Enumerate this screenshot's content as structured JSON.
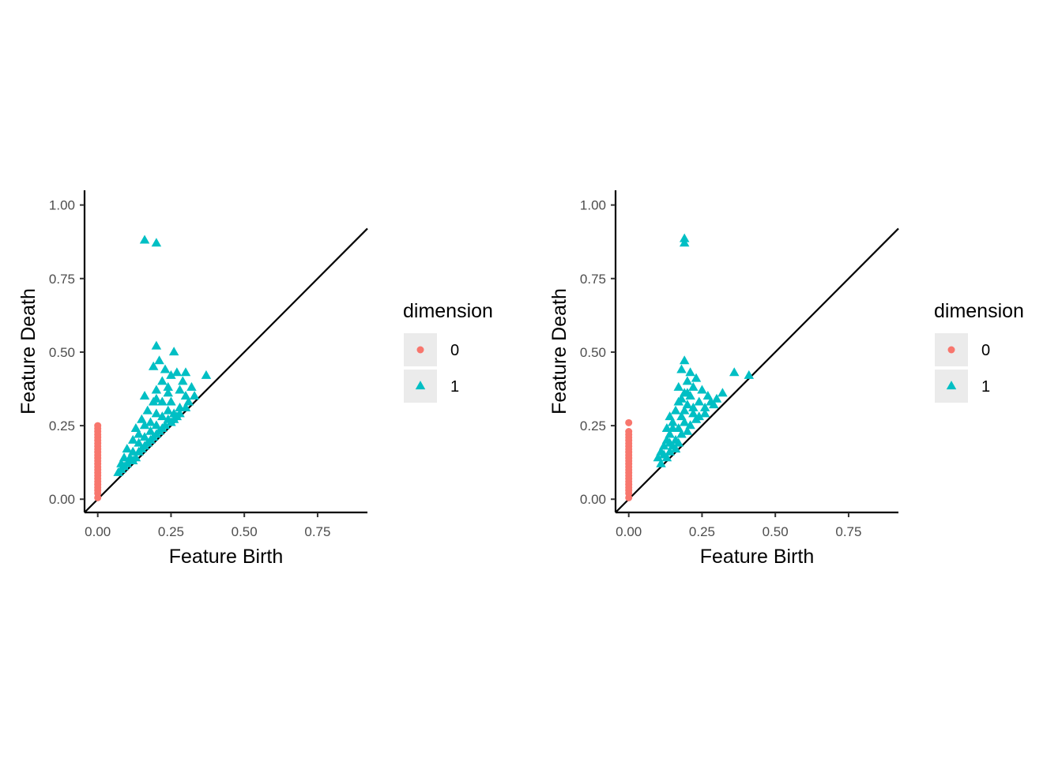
{
  "chart_data": [
    {
      "type": "scatter",
      "title": "",
      "xlabel": "Feature Birth",
      "ylabel": "Feature Death",
      "xlim": [
        -0.045,
        0.92
      ],
      "ylim": [
        -0.045,
        1.05
      ],
      "xticks": [
        "0.00",
        "0.25",
        "0.50",
        "0.75"
      ],
      "xtick_values": [
        0,
        0.25,
        0.5,
        0.75
      ],
      "yticks": [
        "0.00",
        "0.25",
        "0.50",
        "0.75",
        "1.00"
      ],
      "ytick_values": [
        0,
        0.25,
        0.5,
        0.75,
        1.0
      ],
      "diagonal": true,
      "grid": false,
      "legend": {
        "title": "dimension",
        "position": "right",
        "entries": [
          {
            "label": "0",
            "shape": "circle",
            "color": "#F8766D"
          },
          {
            "label": "1",
            "shape": "triangle",
            "color": "#00BFC4"
          }
        ]
      },
      "series": [
        {
          "name": "0",
          "shape": "circle",
          "color": "#F8766D",
          "points": [
            [
              0,
              0.005
            ],
            [
              0,
              0.02
            ],
            [
              0,
              0.03
            ],
            [
              0,
              0.04
            ],
            [
              0,
              0.05
            ],
            [
              0,
              0.06
            ],
            [
              0,
              0.07
            ],
            [
              0,
              0.08
            ],
            [
              0,
              0.09
            ],
            [
              0,
              0.1
            ],
            [
              0,
              0.11
            ],
            [
              0,
              0.12
            ],
            [
              0,
              0.13
            ],
            [
              0,
              0.14
            ],
            [
              0,
              0.15
            ],
            [
              0,
              0.16
            ],
            [
              0,
              0.17
            ],
            [
              0,
              0.18
            ],
            [
              0,
              0.19
            ],
            [
              0,
              0.2
            ],
            [
              0,
              0.21
            ],
            [
              0,
              0.22
            ],
            [
              0,
              0.23
            ],
            [
              0,
              0.24
            ],
            [
              0,
              0.25
            ]
          ]
        },
        {
          "name": "1",
          "shape": "triangle",
          "color": "#00BFC4",
          "points": [
            [
              0.16,
              0.88
            ],
            [
              0.2,
              0.87
            ],
            [
              0.2,
              0.52
            ],
            [
              0.26,
              0.5
            ],
            [
              0.21,
              0.47
            ],
            [
              0.16,
              0.35
            ],
            [
              0.3,
              0.43
            ],
            [
              0.27,
              0.43
            ],
            [
              0.37,
              0.42
            ],
            [
              0.25,
              0.42
            ],
            [
              0.29,
              0.4
            ],
            [
              0.22,
              0.4
            ],
            [
              0.32,
              0.38
            ],
            [
              0.24,
              0.38
            ],
            [
              0.2,
              0.37
            ],
            [
              0.28,
              0.37
            ],
            [
              0.33,
              0.35
            ],
            [
              0.3,
              0.35
            ],
            [
              0.19,
              0.33
            ],
            [
              0.25,
              0.33
            ],
            [
              0.22,
              0.33
            ],
            [
              0.31,
              0.33
            ],
            [
              0.17,
              0.3
            ],
            [
              0.24,
              0.3
            ],
            [
              0.28,
              0.31
            ],
            [
              0.2,
              0.29
            ],
            [
              0.26,
              0.29
            ],
            [
              0.3,
              0.31
            ],
            [
              0.15,
              0.27
            ],
            [
              0.22,
              0.28
            ],
            [
              0.18,
              0.26
            ],
            [
              0.24,
              0.27
            ],
            [
              0.28,
              0.29
            ],
            [
              0.13,
              0.24
            ],
            [
              0.16,
              0.25
            ],
            [
              0.2,
              0.25
            ],
            [
              0.26,
              0.27
            ],
            [
              0.14,
              0.22
            ],
            [
              0.18,
              0.23
            ],
            [
              0.22,
              0.24
            ],
            [
              0.12,
              0.2
            ],
            [
              0.16,
              0.21
            ],
            [
              0.2,
              0.22
            ],
            [
              0.1,
              0.17
            ],
            [
              0.14,
              0.19
            ],
            [
              0.18,
              0.2
            ],
            [
              0.09,
              0.14
            ],
            [
              0.12,
              0.16
            ],
            [
              0.16,
              0.18
            ],
            [
              0.08,
              0.12
            ],
            [
              0.11,
              0.14
            ],
            [
              0.14,
              0.16
            ],
            [
              0.07,
              0.09
            ],
            [
              0.1,
              0.12
            ],
            [
              0.13,
              0.14
            ],
            [
              0.08,
              0.1
            ],
            [
              0.12,
              0.13
            ],
            [
              0.15,
              0.17
            ],
            [
              0.17,
              0.19
            ],
            [
              0.21,
              0.23
            ],
            [
              0.23,
              0.25
            ],
            [
              0.25,
              0.26
            ],
            [
              0.27,
              0.28
            ],
            [
              0.19,
              0.21
            ],
            [
              0.11,
              0.13
            ],
            [
              0.09,
              0.11
            ],
            [
              0.2,
              0.34
            ],
            [
              0.19,
              0.45
            ],
            [
              0.23,
              0.44
            ],
            [
              0.24,
              0.36
            ]
          ]
        }
      ]
    },
    {
      "type": "scatter",
      "title": "",
      "xlabel": "Feature Birth",
      "ylabel": "Feature Death",
      "xlim": [
        -0.045,
        0.92
      ],
      "ylim": [
        -0.045,
        1.05
      ],
      "xticks": [
        "0.00",
        "0.25",
        "0.50",
        "0.75"
      ],
      "xtick_values": [
        0,
        0.25,
        0.5,
        0.75
      ],
      "yticks": [
        "0.00",
        "0.25",
        "0.50",
        "0.75",
        "1.00"
      ],
      "ytick_values": [
        0,
        0.25,
        0.5,
        0.75,
        1.0
      ],
      "diagonal": true,
      "grid": false,
      "legend": {
        "title": "dimension",
        "position": "right",
        "entries": [
          {
            "label": "0",
            "shape": "circle",
            "color": "#F8766D"
          },
          {
            "label": "1",
            "shape": "triangle",
            "color": "#00BFC4"
          }
        ]
      },
      "series": [
        {
          "name": "0",
          "shape": "circle",
          "color": "#F8766D",
          "points": [
            [
              0,
              0.005
            ],
            [
              0,
              0.02
            ],
            [
              0,
              0.03
            ],
            [
              0,
              0.04
            ],
            [
              0,
              0.05
            ],
            [
              0,
              0.06
            ],
            [
              0,
              0.07
            ],
            [
              0,
              0.08
            ],
            [
              0,
              0.09
            ],
            [
              0,
              0.1
            ],
            [
              0,
              0.11
            ],
            [
              0,
              0.12
            ],
            [
              0,
              0.13
            ],
            [
              0,
              0.14
            ],
            [
              0,
              0.15
            ],
            [
              0,
              0.16
            ],
            [
              0,
              0.17
            ],
            [
              0,
              0.18
            ],
            [
              0,
              0.19
            ],
            [
              0,
              0.2
            ],
            [
              0,
              0.21
            ],
            [
              0,
              0.22
            ],
            [
              0,
              0.23
            ],
            [
              0,
              0.26
            ]
          ]
        },
        {
          "name": "1",
          "shape": "triangle",
          "color": "#00BFC4",
          "points": [
            [
              0.19,
              0.885
            ],
            [
              0.19,
              0.87
            ],
            [
              0.19,
              0.47
            ],
            [
              0.18,
              0.44
            ],
            [
              0.21,
              0.43
            ],
            [
              0.36,
              0.43
            ],
            [
              0.41,
              0.42
            ],
            [
              0.23,
              0.41
            ],
            [
              0.2,
              0.4
            ],
            [
              0.17,
              0.38
            ],
            [
              0.22,
              0.38
            ],
            [
              0.25,
              0.37
            ],
            [
              0.19,
              0.36
            ],
            [
              0.21,
              0.35
            ],
            [
              0.27,
              0.35
            ],
            [
              0.32,
              0.36
            ],
            [
              0.3,
              0.34
            ],
            [
              0.17,
              0.33
            ],
            [
              0.2,
              0.32
            ],
            [
              0.24,
              0.33
            ],
            [
              0.28,
              0.33
            ],
            [
              0.16,
              0.3
            ],
            [
              0.19,
              0.3
            ],
            [
              0.22,
              0.31
            ],
            [
              0.26,
              0.31
            ],
            [
              0.14,
              0.28
            ],
            [
              0.18,
              0.28
            ],
            [
              0.22,
              0.29
            ],
            [
              0.15,
              0.26
            ],
            [
              0.19,
              0.26
            ],
            [
              0.23,
              0.27
            ],
            [
              0.13,
              0.24
            ],
            [
              0.17,
              0.24
            ],
            [
              0.21,
              0.25
            ],
            [
              0.14,
              0.22
            ],
            [
              0.18,
              0.22
            ],
            [
              0.13,
              0.2
            ],
            [
              0.16,
              0.2
            ],
            [
              0.12,
              0.18
            ],
            [
              0.15,
              0.18
            ],
            [
              0.11,
              0.16
            ],
            [
              0.14,
              0.16
            ],
            [
              0.1,
              0.14
            ],
            [
              0.13,
              0.14
            ],
            [
              0.11,
              0.12
            ],
            [
              0.12,
              0.15
            ],
            [
              0.16,
              0.17
            ],
            [
              0.17,
              0.19
            ],
            [
              0.2,
              0.23
            ],
            [
              0.24,
              0.28
            ],
            [
              0.26,
              0.29
            ],
            [
              0.18,
              0.34
            ],
            [
              0.2,
              0.36
            ],
            [
              0.29,
              0.32
            ],
            [
              0.15,
              0.24
            ],
            [
              0.14,
              0.19
            ]
          ]
        }
      ]
    }
  ]
}
